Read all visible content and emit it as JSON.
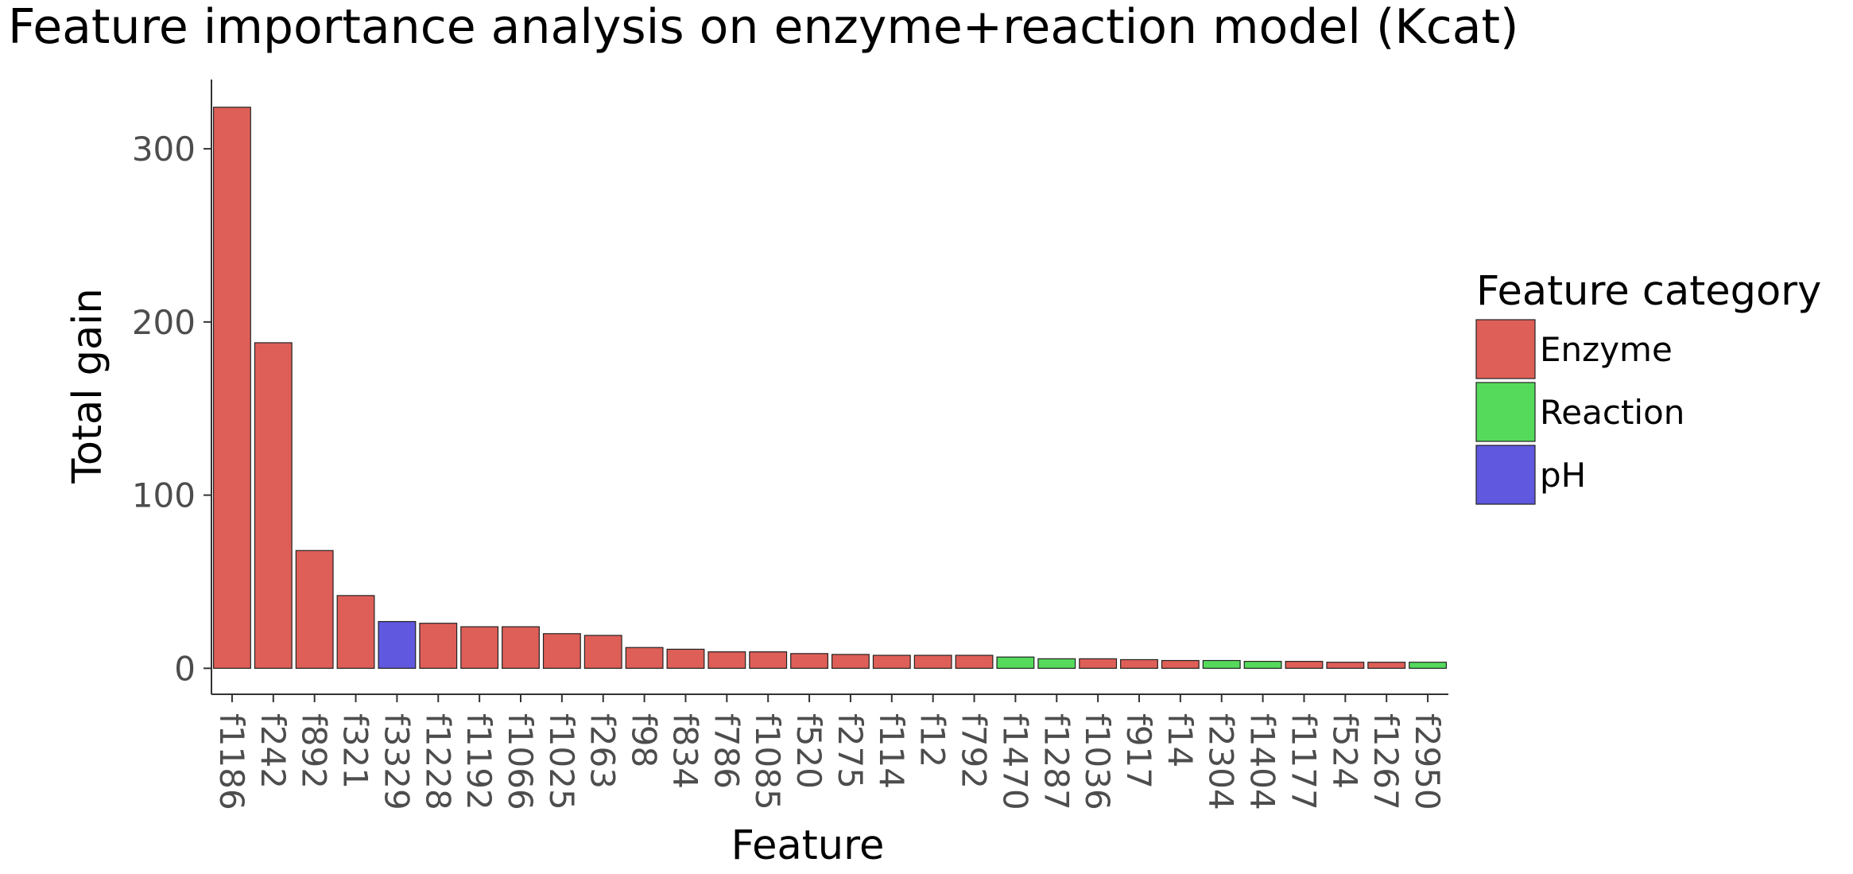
{
  "chart_data": {
    "type": "bar",
    "title": "Feature importance analysis on enzyme+reaction model (Kcat)",
    "xlabel": "Feature",
    "ylabel": "Total gain",
    "ylim": [
      -15,
      340
    ],
    "yticks": [
      0,
      100,
      200,
      300
    ],
    "categories": [
      "f1186",
      "f242",
      "f892",
      "f321",
      "f3329",
      "f1228",
      "f1192",
      "f1066",
      "f1025",
      "f263",
      "f98",
      "f834",
      "f786",
      "f1085",
      "f520",
      "f275",
      "f114",
      "f12",
      "f792",
      "f1470",
      "f1287",
      "f1036",
      "f917",
      "f14",
      "f2304",
      "f1404",
      "f1177",
      "f524",
      "f1267",
      "f2950"
    ],
    "values": [
      324,
      188,
      68,
      42,
      27,
      26,
      24,
      24,
      20,
      19,
      12,
      11,
      9.5,
      9.5,
      8.5,
      8,
      7.5,
      7.5,
      7.5,
      6.5,
      5.5,
      5.5,
      5,
      4.5,
      4.5,
      4,
      4,
      3.5,
      3.5,
      3.5
    ],
    "groups": [
      "Enzyme",
      "Enzyme",
      "Enzyme",
      "Enzyme",
      "pH",
      "Enzyme",
      "Enzyme",
      "Enzyme",
      "Enzyme",
      "Enzyme",
      "Enzyme",
      "Enzyme",
      "Enzyme",
      "Enzyme",
      "Enzyme",
      "Enzyme",
      "Enzyme",
      "Enzyme",
      "Enzyme",
      "Reaction",
      "Reaction",
      "Enzyme",
      "Enzyme",
      "Enzyme",
      "Reaction",
      "Reaction",
      "Enzyme",
      "Enzyme",
      "Enzyme",
      "Reaction"
    ],
    "legend": {
      "title": "Feature category",
      "placement": "right",
      "entries": [
        {
          "name": "Enzyme",
          "color": "#de5f57"
        },
        {
          "name": "Reaction",
          "color": "#55da5c"
        },
        {
          "name": "pH",
          "color": "#6058de"
        }
      ]
    },
    "grid": false
  }
}
